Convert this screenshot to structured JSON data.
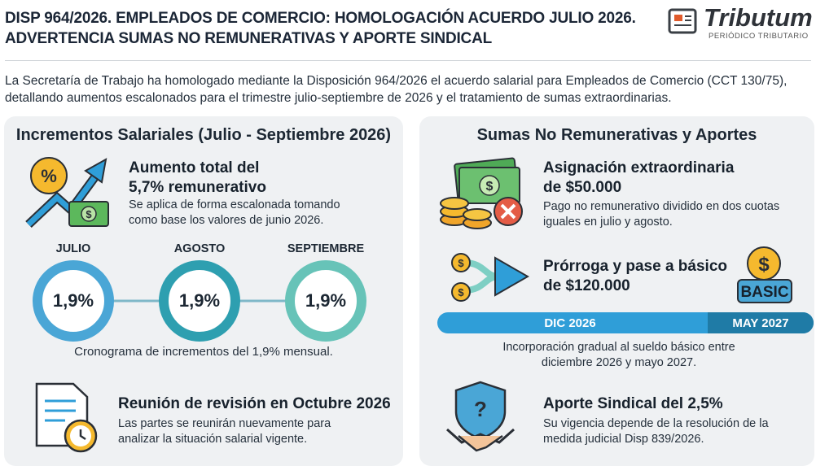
{
  "header": {
    "title_lines": [
      "DISP 964/2026. EMPLEADOS DE COMERCIO: HOMOLOGACIÓN ACUERDO JULIO 2026.",
      "ADVERTENCIA SUMAS NO REMUNERATIVAS Y APORTE SINDICAL"
    ],
    "logo": {
      "name": "Tributum",
      "tagline": "PERIÓDICO TRIBUTARIO"
    }
  },
  "intro_lines": [
    "La Secretaría de Trabajo ha homologado mediante la Disposición 964/2026 el acuerdo salarial para Empleados de Comercio (CCT 130/75),",
    "detallando aumentos escalonados para el trimestre julio-septiembre de 2026 y el tratamiento de sumas extraordinarias."
  ],
  "icons": {
    "percent": "%",
    "dollar": "$",
    "question": "?",
    "basic": "BASIC"
  },
  "left": {
    "title": "Incrementos Salariales (Julio - Septiembre 2026)",
    "increase": {
      "title_lines": [
        "Aumento total del",
        "5,7% remunerativo"
      ],
      "desc_lines": [
        "Se aplica de forma escalonada tomando",
        "como base los valores de junio 2026."
      ]
    },
    "months": [
      {
        "label": "JULIO",
        "value": "1,9%"
      },
      {
        "label": "AGOSTO",
        "value": "1,9%"
      },
      {
        "label": "SEPTIEMBRE",
        "value": "1,9%"
      }
    ],
    "caption": "Cronograma de incrementos del 1,9% mensual.",
    "review": {
      "title": "Reunión de revisión en Octubre 2026",
      "desc_lines": [
        "Las partes se reunirán nuevamente para",
        "analizar la situación salarial vigente."
      ]
    }
  },
  "right": {
    "title": "Sumas No Remunerativas y Aportes",
    "extra": {
      "title_lines": [
        "Asignación extraordinaria",
        "de $50.000"
      ],
      "desc_lines": [
        "Pago no remunerativo dividido en dos cuotas",
        "iguales en julio y agosto."
      ]
    },
    "extension": {
      "title_lines": [
        "Prórroga y pase a básico",
        "de $120.000"
      ],
      "timeline": [
        "DIC 2026",
        "MAY 2027"
      ],
      "caption_lines": [
        "Incorporación gradual al sueldo básico entre",
        "diciembre 2026 y mayo 2027."
      ]
    },
    "union": {
      "title": "Aporte Sindical del 2,5%",
      "desc_lines": [
        "Su vigencia depende de la resolución de la",
        "medida judicial Disp 839/2026."
      ]
    }
  }
}
